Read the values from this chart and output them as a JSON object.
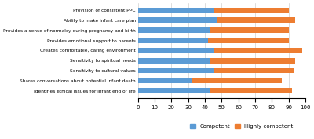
{
  "categories": [
    "Identifies ethical issues for infant end of life",
    "Shares conversations about potential infant death",
    "Sensitivity to cultural values",
    "Sensitivity to spiritual needs",
    "Creates comfortable, caring environment",
    "Provides emotional support to parents",
    "Provides a sense of normalcy during pregnancy and birth",
    "Ability to make infant care plan",
    "Provision of consistent PPC"
  ],
  "competent": [
    43,
    32,
    45,
    43,
    45,
    42,
    43,
    47,
    45
  ],
  "highly_competent": [
    49,
    54,
    48,
    51,
    53,
    48,
    47,
    47,
    45
  ],
  "color_competent": "#5b9bd5",
  "color_highly_competent": "#ed7d31",
  "xlim": [
    0,
    100
  ],
  "xticks": [
    0,
    10,
    20,
    30,
    40,
    50,
    60,
    70,
    80,
    90,
    100
  ],
  "legend_competent": "Competent",
  "legend_highly_competent": "Highly competent",
  "background_color": "#ffffff",
  "grid_color": "#d0d0d0"
}
